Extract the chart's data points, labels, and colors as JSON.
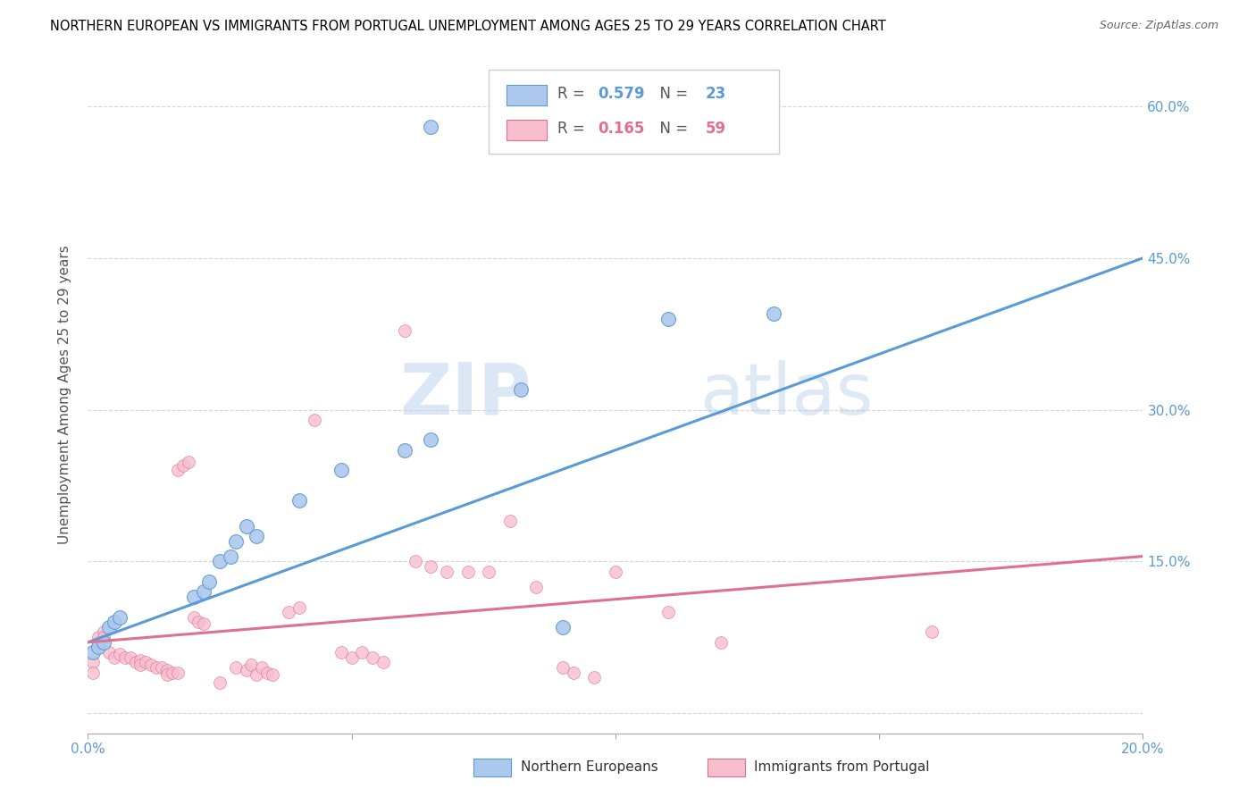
{
  "title": "NORTHERN EUROPEAN VS IMMIGRANTS FROM PORTUGAL UNEMPLOYMENT AMONG AGES 25 TO 29 YEARS CORRELATION CHART",
  "source": "Source: ZipAtlas.com",
  "ylabel": "Unemployment Among Ages 25 to 29 years",
  "legend_label1": "Northern Europeans",
  "legend_label2": "Immigrants from Portugal",
  "R1": 0.579,
  "N1": 23,
  "R2": 0.165,
  "N2": 59,
  "blue_color": "#adc8ed",
  "pink_color": "#f7bece",
  "blue_line_color": "#5b9bd5",
  "pink_line_color": "#e07090",
  "watermark_zip": "ZIP",
  "watermark_atlas": "atlas",
  "blue_points": [
    [
      0.001,
      0.06
    ],
    [
      0.002,
      0.065
    ],
    [
      0.003,
      0.07
    ],
    [
      0.004,
      0.085
    ],
    [
      0.005,
      0.09
    ],
    [
      0.006,
      0.095
    ],
    [
      0.02,
      0.115
    ],
    [
      0.022,
      0.12
    ],
    [
      0.023,
      0.13
    ],
    [
      0.025,
      0.15
    ],
    [
      0.027,
      0.155
    ],
    [
      0.028,
      0.17
    ],
    [
      0.03,
      0.185
    ],
    [
      0.032,
      0.175
    ],
    [
      0.04,
      0.21
    ],
    [
      0.048,
      0.24
    ],
    [
      0.06,
      0.26
    ],
    [
      0.065,
      0.27
    ],
    [
      0.082,
      0.32
    ],
    [
      0.09,
      0.085
    ],
    [
      0.11,
      0.39
    ],
    [
      0.13,
      0.395
    ],
    [
      0.065,
      0.58
    ]
  ],
  "pink_points": [
    [
      0.001,
      0.05
    ],
    [
      0.001,
      0.04
    ],
    [
      0.002,
      0.07
    ],
    [
      0.002,
      0.075
    ],
    [
      0.003,
      0.08
    ],
    [
      0.003,
      0.075
    ],
    [
      0.004,
      0.06
    ],
    [
      0.005,
      0.055
    ],
    [
      0.006,
      0.058
    ],
    [
      0.007,
      0.055
    ],
    [
      0.008,
      0.055
    ],
    [
      0.009,
      0.05
    ],
    [
      0.01,
      0.052
    ],
    [
      0.01,
      0.048
    ],
    [
      0.011,
      0.05
    ],
    [
      0.012,
      0.048
    ],
    [
      0.013,
      0.045
    ],
    [
      0.014,
      0.045
    ],
    [
      0.015,
      0.042
    ],
    [
      0.015,
      0.038
    ],
    [
      0.016,
      0.04
    ],
    [
      0.017,
      0.04
    ],
    [
      0.017,
      0.24
    ],
    [
      0.018,
      0.245
    ],
    [
      0.019,
      0.248
    ],
    [
      0.02,
      0.095
    ],
    [
      0.021,
      0.09
    ],
    [
      0.022,
      0.088
    ],
    [
      0.025,
      0.03
    ],
    [
      0.028,
      0.045
    ],
    [
      0.03,
      0.042
    ],
    [
      0.031,
      0.048
    ],
    [
      0.032,
      0.038
    ],
    [
      0.033,
      0.045
    ],
    [
      0.034,
      0.04
    ],
    [
      0.035,
      0.038
    ],
    [
      0.038,
      0.1
    ],
    [
      0.04,
      0.104
    ],
    [
      0.043,
      0.29
    ],
    [
      0.048,
      0.06
    ],
    [
      0.05,
      0.055
    ],
    [
      0.052,
      0.06
    ],
    [
      0.054,
      0.055
    ],
    [
      0.056,
      0.05
    ],
    [
      0.06,
      0.378
    ],
    [
      0.062,
      0.15
    ],
    [
      0.065,
      0.145
    ],
    [
      0.068,
      0.14
    ],
    [
      0.072,
      0.14
    ],
    [
      0.076,
      0.14
    ],
    [
      0.08,
      0.19
    ],
    [
      0.085,
      0.125
    ],
    [
      0.09,
      0.045
    ],
    [
      0.092,
      0.04
    ],
    [
      0.096,
      0.035
    ],
    [
      0.1,
      0.14
    ],
    [
      0.11,
      0.1
    ],
    [
      0.12,
      0.07
    ],
    [
      0.16,
      0.08
    ]
  ]
}
